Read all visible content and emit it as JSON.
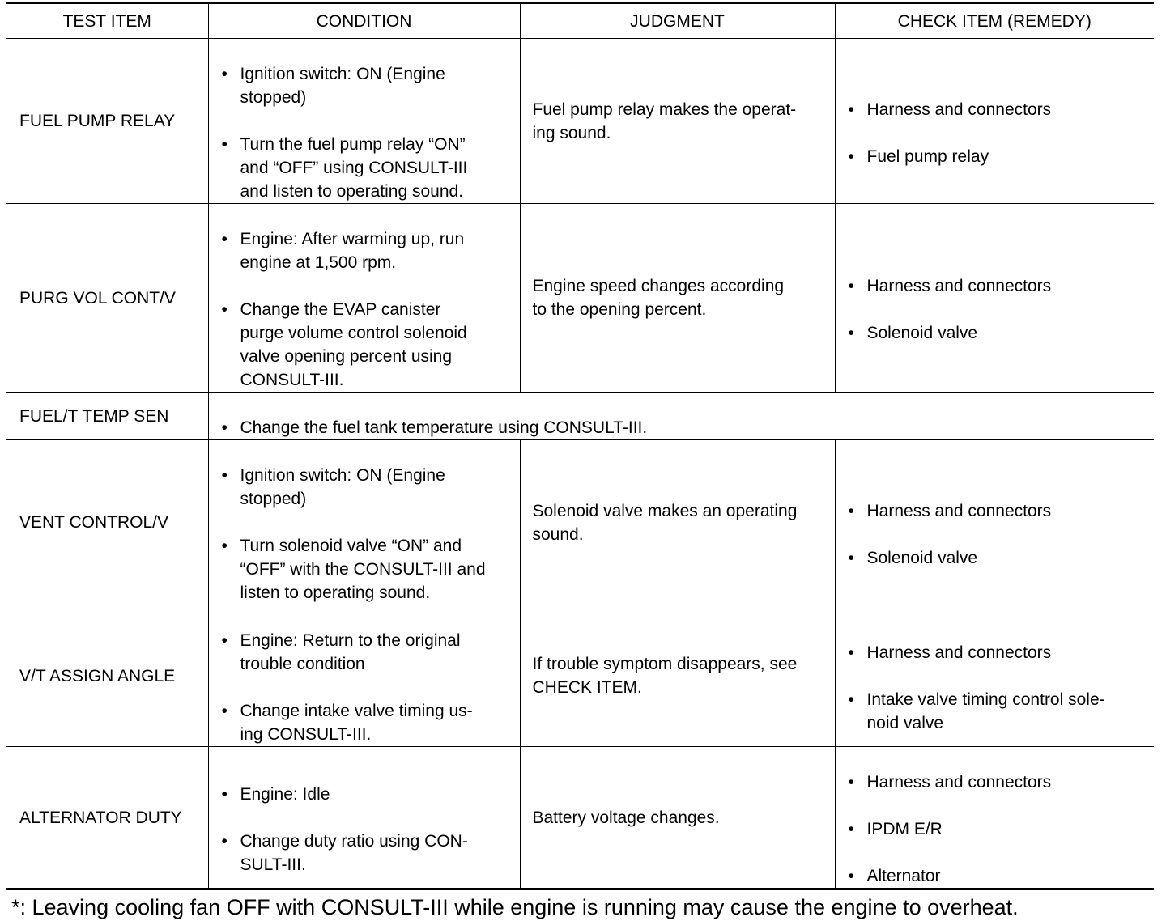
{
  "headers": [
    "TEST ITEM",
    "CONDITION",
    "JUDGMENT",
    "CHECK ITEM (REMEDY)"
  ],
  "rows": [
    {
      "item": "FUEL PUMP RELAY",
      "condition": [
        "Ignition switch: ON (Engine\nstopped)",
        "Turn the fuel pump relay “ON”\nand “OFF” using CONSULT-III\nand listen to operating sound."
      ],
      "judgment": "Fuel pump relay makes the operat-\ning sound.",
      "check": [
        "Harness and connectors",
        "Fuel pump relay"
      ]
    },
    {
      "item": "PURG VOL CONT/V",
      "condition": [
        "Engine: After warming up, run\nengine at 1,500 rpm.",
        "Change the EVAP canister\npurge volume control solenoid\nvalve opening percent using\nCONSULT-III."
      ],
      "judgment": "Engine speed changes according\nto the opening percent.",
      "check": [
        "Harness and connectors",
        "Solenoid valve"
      ]
    },
    {
      "item": "FUEL/T TEMP SEN",
      "condition": [
        "Change the fuel tank temperature using CONSULT-III."
      ]
    },
    {
      "item": "VENT CONTROL/V",
      "condition": [
        "Ignition switch: ON (Engine\nstopped)",
        "Turn solenoid valve “ON” and\n“OFF” with the CONSULT-III and\nlisten to operating sound."
      ],
      "judgment": "Solenoid valve makes an operating\nsound.",
      "check": [
        "Harness and connectors",
        "Solenoid valve"
      ]
    },
    {
      "item": "V/T ASSIGN ANGLE",
      "condition": [
        "Engine: Return to the original\ntrouble condition",
        "Change intake valve timing us-\ning CONSULT-III."
      ],
      "judgment": "If trouble symptom disappears, see\nCHECK ITEM.",
      "check": [
        "Harness and connectors",
        "Intake valve timing control sole-\nnoid valve"
      ]
    },
    {
      "item": "ALTERNATOR DUTY",
      "condition": [
        "Engine: Idle",
        "Change duty ratio using CON-\nSULT-III."
      ],
      "judgment": "Battery voltage changes.",
      "check": [
        "Harness and connectors",
        "IPDM E/R",
        "Alternator"
      ]
    }
  ],
  "footnote": "*: Leaving cooling fan OFF with CONSULT-III while engine is running may cause the engine to overheat."
}
